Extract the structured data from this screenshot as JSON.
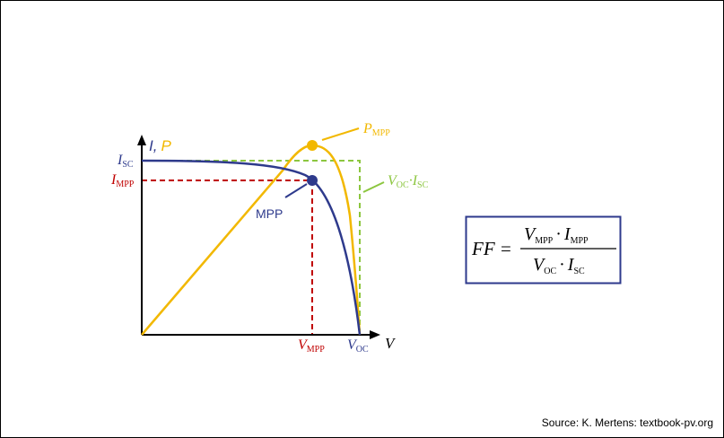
{
  "axes": {
    "y_label": {
      "current": "I",
      "separator": ",",
      "power": "P"
    },
    "x_label": "V"
  },
  "labels": {
    "isc": {
      "symbol": "I",
      "subscript": "SC"
    },
    "impp": {
      "symbol": "I",
      "subscript": "MPP"
    },
    "vmpp": {
      "symbol": "V",
      "subscript": "MPP"
    },
    "voc": {
      "symbol": "V",
      "subscript": "OC"
    },
    "pmpp": {
      "symbol": "P",
      "subscript": "MPP"
    },
    "voc_isc": {
      "symbol1": "V",
      "subscript1": "OC",
      "dot": "·",
      "symbol2": "I",
      "subscript2": "SC"
    },
    "mpp": "MPP"
  },
  "formula": {
    "lhs": "FF",
    "equals": "=",
    "numerator": {
      "symbol1": "V",
      "subscript1": "MPP",
      "dot": "·",
      "symbol2": "I",
      "subscript2": "MPP"
    },
    "denominator": {
      "symbol1": "V",
      "subscript1": "OC",
      "dot": "·",
      "symbol2": "I",
      "subscript2": "SC"
    }
  },
  "source": "Source: K. Mertens: textbook-pv.org"
}
